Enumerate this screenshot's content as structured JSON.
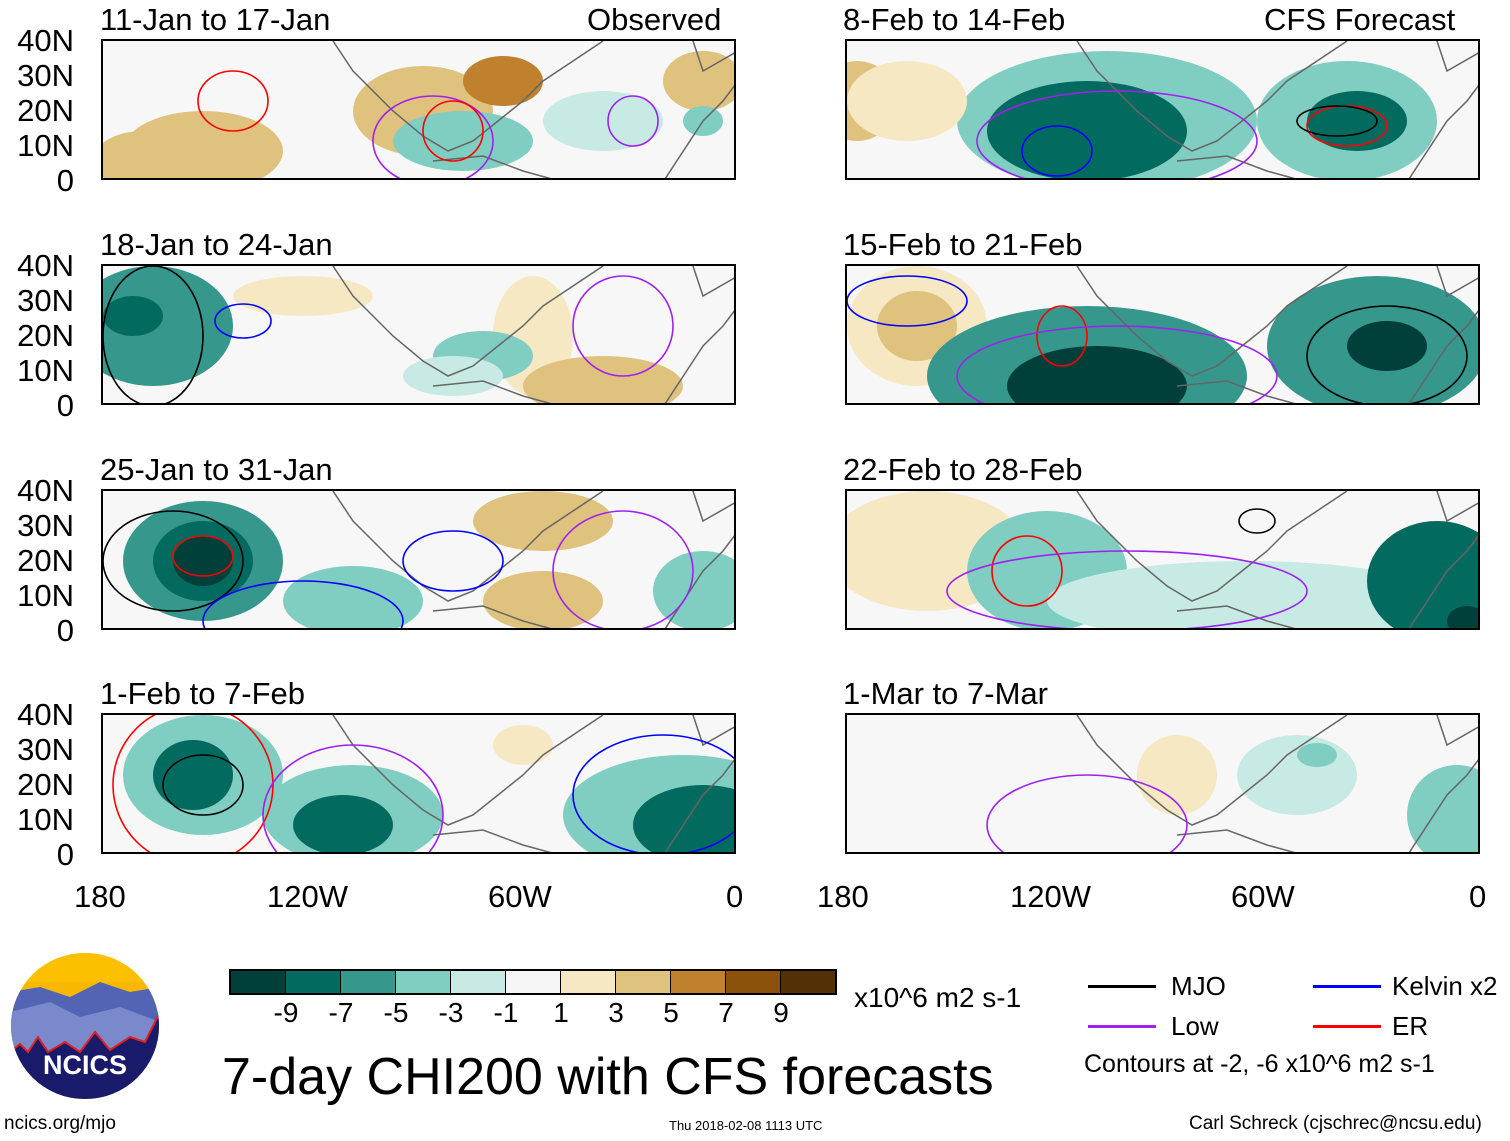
{
  "figure": {
    "title": "7-day CHI200 with CFS forecasts",
    "observed_label": "Observed",
    "forecast_label": "CFS Forecast",
    "units": "x10^6 m2 s-1",
    "contours_note": "Contours at -2, -6 x10^6 m2 s-1",
    "url": "ncics.org/mjo",
    "timestamp": "Thu 2018-02-08 1113 UTC",
    "author": "Carl Schreck (cjschrec@ncsu.edu)",
    "logo_text": "NCICS"
  },
  "axes": {
    "lat_labels": [
      "40N",
      "30N",
      "20N",
      "10N",
      "0"
    ],
    "lon_labels": [
      "180",
      "120W",
      "60W",
      "0"
    ]
  },
  "panels": {
    "observed": [
      {
        "title": "11-Jan to 17-Jan"
      },
      {
        "title": "18-Jan to 24-Jan"
      },
      {
        "title": "25-Jan to 31-Jan"
      },
      {
        "title": "1-Feb to 7-Feb"
      }
    ],
    "forecast": [
      {
        "title": "8-Feb to 14-Feb"
      },
      {
        "title": "15-Feb to 21-Feb"
      },
      {
        "title": "22-Feb to 28-Feb"
      },
      {
        "title": "1-Mar to 7-Mar"
      }
    ]
  },
  "colorbar": {
    "ticks": [
      "-9",
      "-7",
      "-5",
      "-3",
      "-1",
      "1",
      "3",
      "5",
      "7",
      "9"
    ],
    "colors": [
      "#01403a",
      "#036a5f",
      "#36978c",
      "#80cdc1",
      "#c7eae5",
      "#f5f5f5",
      "#f6e8c3",
      "#dfc27d",
      "#bf812d",
      "#8c510a",
      "#543005"
    ]
  },
  "legend": [
    {
      "label": "MJO",
      "color": "#000000"
    },
    {
      "label": "Kelvin x2",
      "color": "#0000ff"
    },
    {
      "label": "Low",
      "color": "#a020f0"
    },
    {
      "label": "ER",
      "color": "#ff0000"
    }
  ]
}
